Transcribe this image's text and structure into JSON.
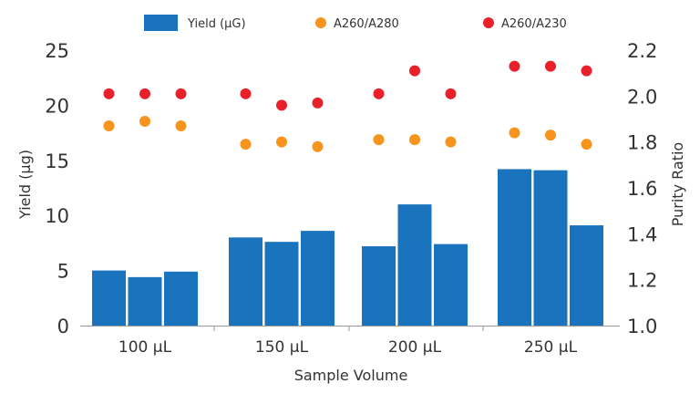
{
  "chart_data": {
    "type": "bar",
    "xlabel": "Sample Volume",
    "ylabel_left": "Yield (µg)",
    "ylabel_right": "Purity Ratio",
    "categories": [
      "100 µL",
      "150 µL",
      "200 µL",
      "250 µL"
    ],
    "ylim_left": [
      0,
      25
    ],
    "yticks_left": [
      "0",
      "5",
      "10",
      "15",
      "20",
      "25"
    ],
    "ylim_right": [
      1.0,
      2.2
    ],
    "yticks_right": [
      "1.0",
      "1.2",
      "1.4",
      "1.6",
      "1.8",
      "2.0",
      "2.2"
    ],
    "grid": false,
    "legend_position": "top",
    "series": [
      {
        "name": "Yield (µG)",
        "kind": "bar",
        "axis": "left",
        "color": "#1a73bd",
        "values": [
          [
            5.0,
            4.4,
            4.9
          ],
          [
            8.0,
            7.6,
            8.6
          ],
          [
            7.2,
            11.0,
            7.4
          ],
          [
            14.2,
            14.1,
            9.1
          ]
        ]
      },
      {
        "name": "A260/A280",
        "kind": "scatter",
        "axis": "right",
        "color": "#f7941d",
        "values": [
          [
            1.87,
            1.89,
            1.87
          ],
          [
            1.79,
            1.8,
            1.78
          ],
          [
            1.81,
            1.81,
            1.8
          ],
          [
            1.84,
            1.83,
            1.79
          ]
        ]
      },
      {
        "name": "A260/A230",
        "kind": "scatter",
        "axis": "right",
        "color": "#e8202a",
        "values": [
          [
            2.01,
            2.01,
            2.01
          ],
          [
            2.01,
            1.96,
            1.97
          ],
          [
            2.01,
            2.11,
            2.01
          ],
          [
            2.13,
            2.13,
            2.11
          ]
        ]
      }
    ]
  }
}
